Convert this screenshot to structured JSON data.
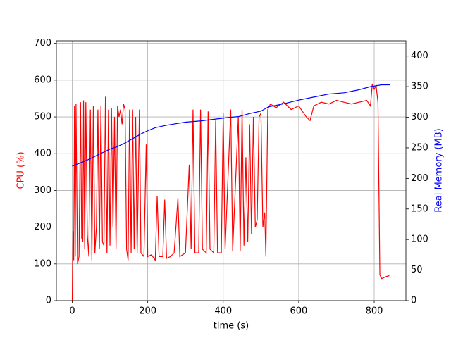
{
  "chart_data": {
    "type": "line",
    "xlabel": "time (s)",
    "ylabel": "CPU (%)",
    "y2label": "Real Memory (MB)",
    "xlim": [
      -42,
      884
    ],
    "xticks": [
      0,
      200,
      400,
      600,
      800
    ],
    "ylim": [
      0,
      707
    ],
    "yticks": [
      0,
      100,
      200,
      300,
      400,
      500,
      600,
      700
    ],
    "y2lim": [
      0,
      425
    ],
    "y2ticks": [
      0,
      50,
      100,
      150,
      200,
      250,
      300,
      350,
      400
    ],
    "grid": true,
    "series": [
      {
        "name": "CPU",
        "color": "#ff0000",
        "axis": "y",
        "x": [
          0,
          2,
          4,
          6,
          8,
          10,
          14,
          18,
          22,
          25,
          28,
          30,
          33,
          36,
          40,
          44,
          48,
          52,
          56,
          60,
          64,
          68,
          72,
          76,
          80,
          84,
          88,
          92,
          96,
          100,
          104,
          108,
          112,
          116,
          120,
          124,
          128,
          132,
          136,
          140,
          144,
          148,
          152,
          156,
          160,
          164,
          168,
          172,
          178,
          182,
          190,
          196,
          200,
          210,
          220,
          225,
          230,
          240,
          245,
          250,
          260,
          270,
          280,
          285,
          300,
          310,
          315,
          320,
          325,
          335,
          340,
          345,
          355,
          360,
          365,
          375,
          380,
          385,
          395,
          400,
          405,
          420,
          425,
          440,
          445,
          450,
          455,
          460,
          465,
          470,
          475,
          480,
          485,
          490,
          495,
          500,
          505,
          510,
          513,
          518,
          525,
          540,
          560,
          580,
          600,
          620,
          630,
          640,
          660,
          680,
          700,
          720,
          740,
          760,
          780,
          790,
          795,
          800,
          805,
          810,
          815,
          820,
          830,
          840
        ],
        "values": [
          0,
          190,
          110,
          530,
          120,
          535,
          100,
          120,
          540,
          170,
          160,
          545,
          140,
          540,
          180,
          120,
          520,
          110,
          530,
          130,
          200,
          520,
          140,
          530,
          160,
          150,
          555,
          130,
          520,
          150,
          525,
          200,
          500,
          140,
          530,
          500,
          520,
          480,
          535,
          520,
          140,
          110,
          520,
          130,
          520,
          140,
          500,
          130,
          520,
          130,
          120,
          425,
          120,
          125,
          110,
          285,
          120,
          120,
          275,
          115,
          120,
          130,
          280,
          120,
          130,
          370,
          140,
          520,
          130,
          130,
          520,
          140,
          130,
          515,
          140,
          130,
          490,
          130,
          130,
          510,
          140,
          520,
          135,
          500,
          135,
          520,
          150,
          390,
          160,
          480,
          180,
          500,
          200,
          220,
          500,
          510,
          200,
          240,
          120,
          520,
          535,
          525,
          540,
          520,
          530,
          500,
          490,
          530,
          540,
          535,
          545,
          540,
          535,
          540,
          545,
          530,
          590,
          575,
          585,
          540,
          70,
          60,
          65,
          68
        ]
      },
      {
        "name": "Real Memory",
        "color": "#0000ff",
        "axis": "y2",
        "x": [
          0,
          20,
          40,
          60,
          80,
          100,
          120,
          140,
          160,
          180,
          200,
          220,
          250,
          280,
          300,
          340,
          380,
          420,
          440,
          470,
          500,
          520,
          560,
          600,
          640,
          680,
          720,
          760,
          790,
          820,
          842
        ],
        "values": [
          220,
          225,
          230,
          236,
          242,
          248,
          252,
          258,
          265,
          272,
          278,
          283,
          287,
          290,
          292,
          294,
          297,
          300,
          301,
          306,
          310,
          317,
          322,
          328,
          333,
          338,
          340,
          345,
          350,
          353,
          353
        ]
      }
    ]
  }
}
